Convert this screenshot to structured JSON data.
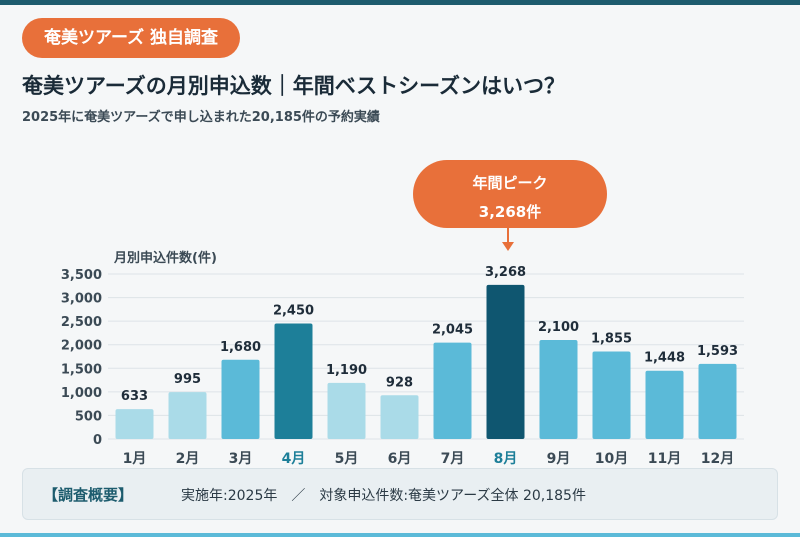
{
  "badge": "奄美ツアーズ 独自調査",
  "title": "奄美ツアーズの月別申込数｜年間ベストシーズンはいつ？",
  "subtitle": "2025年に奄美ツアーズで申し込まれた20,185件の予約実績",
  "callout": {
    "line1": "年間ピーク",
    "line2": "3,268件"
  },
  "footer": {
    "label": "【調査概要】",
    "text": "実施年:2025年　／　対象申込件数:奄美ツアーズ全体 20,185件"
  },
  "colors": {
    "accent": "#e8703a",
    "peak": "#0f5670",
    "high": "#1d7f99",
    "mid": "#5bbad8",
    "low": "#aadbe8",
    "highlight_label": "#1d7f99"
  },
  "chart_data": {
    "type": "bar",
    "ylabel": "月別申込件数(件)",
    "ylim": [
      0,
      3500
    ],
    "yticks": [
      0,
      500,
      1000,
      1500,
      2000,
      2500,
      3000,
      3500
    ],
    "ytick_labels": [
      "0",
      "500",
      "1,000",
      "1,500",
      "2,000",
      "2,500",
      "3,000",
      "3,500"
    ],
    "categories": [
      "1月",
      "2月",
      "3月",
      "4月",
      "5月",
      "6月",
      "7月",
      "8月",
      "9月",
      "10月",
      "11月",
      "12月"
    ],
    "values": [
      633,
      995,
      1680,
      2450,
      1190,
      928,
      2045,
      3268,
      2100,
      1855,
      1448,
      1593
    ],
    "value_labels": [
      "633",
      "995",
      "1,680",
      "2,450",
      "1,190",
      "928",
      "2,045",
      "3,268",
      "2,100",
      "1,855",
      "1,448",
      "1,593"
    ],
    "bar_colors": [
      "low",
      "low",
      "mid",
      "high",
      "low",
      "low",
      "mid",
      "peak",
      "mid",
      "mid",
      "mid",
      "mid"
    ],
    "highlighted_categories": [
      "4月",
      "8月"
    ],
    "grid": true
  }
}
